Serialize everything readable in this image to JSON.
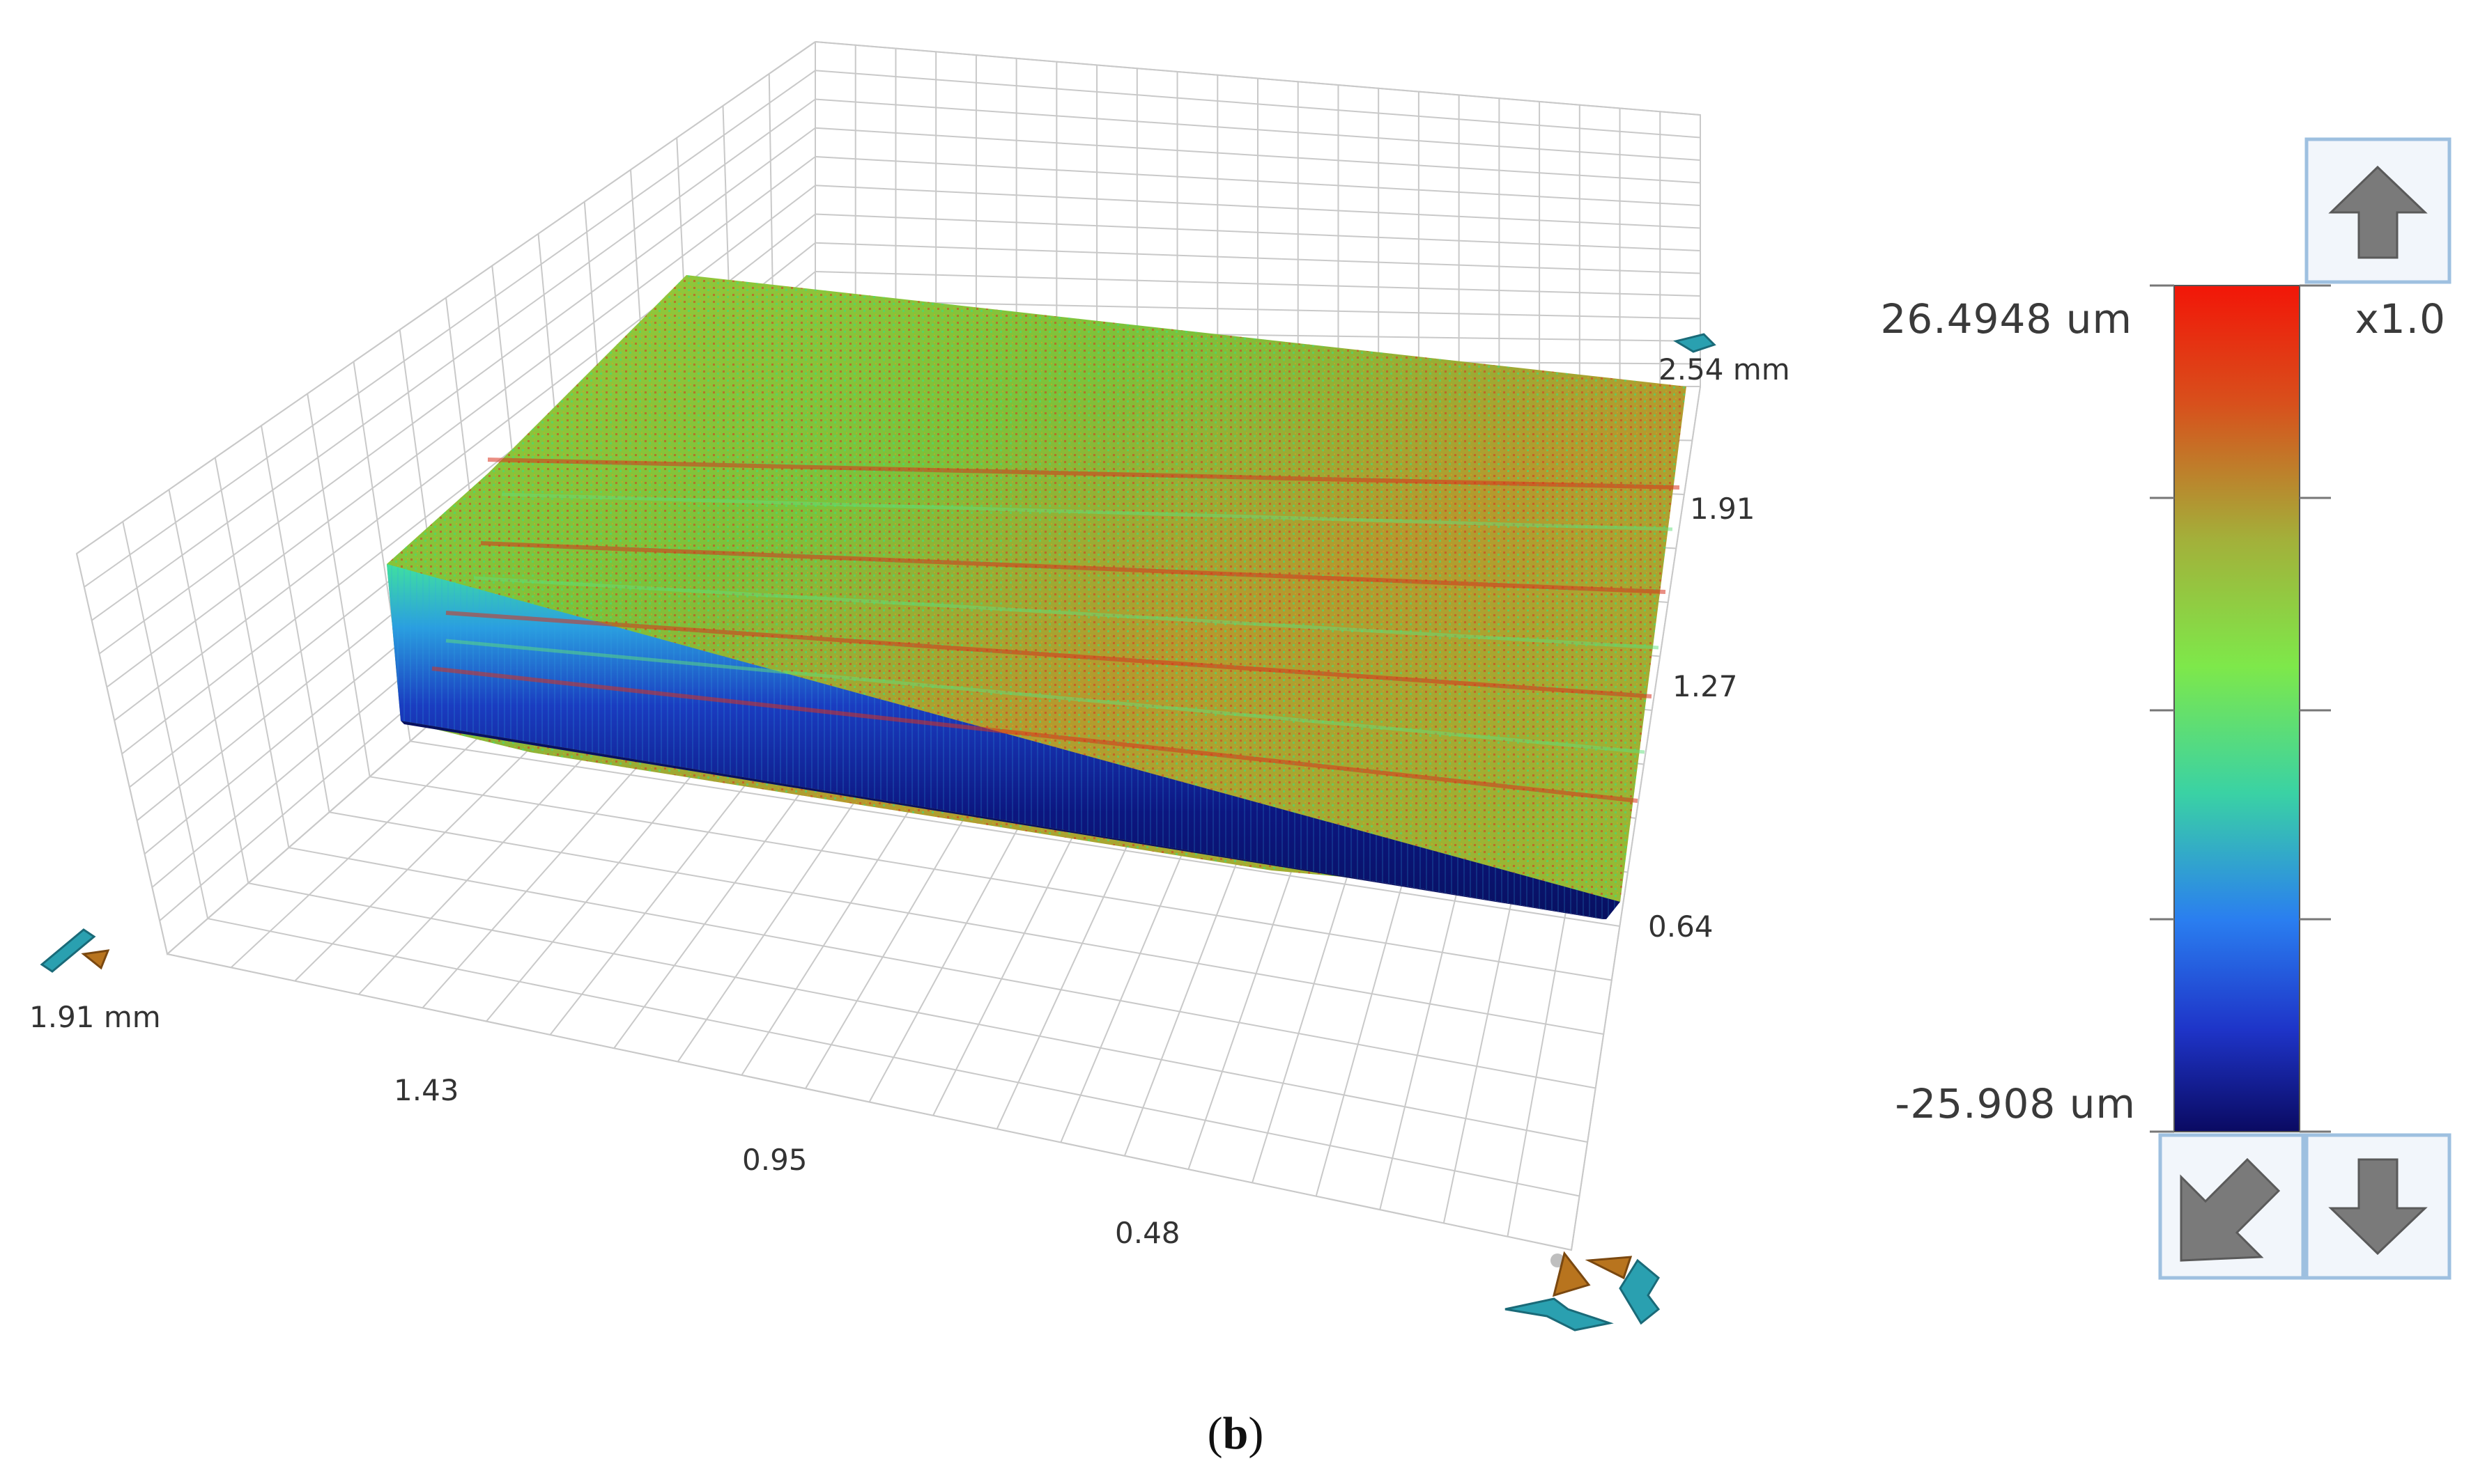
{
  "plot": {
    "axis_labels": {
      "y_axis_ticks": [
        "2.54 mm",
        "1.91",
        "1.27",
        "0.64"
      ],
      "x_axis_ticks": [
        "1.91 mm",
        "1.43",
        "0.95",
        "0.48"
      ]
    },
    "surface_colormap": [
      "#0a1a6e",
      "#1e4fd8",
      "#2fa8e0",
      "#3fe07a",
      "#9ed23a",
      "#c89a2a",
      "#d8321e",
      "#f01a0a"
    ],
    "grid_color": "#c9c9c9"
  },
  "color_scale": {
    "max_label": "26.4948 um",
    "min_label": "-25.908 um",
    "zoom_label": "x1.0",
    "gradient": [
      "#f01a0a",
      "#d85a20",
      "#a6b53a",
      "#7be84a",
      "#36d2a8",
      "#2f7df0",
      "#1e3fd0",
      "#0a0a6a"
    ],
    "buttons": {
      "up": "arrow-up-icon",
      "reset": "arrow-down-left-icon",
      "down": "arrow-down-icon"
    }
  },
  "orientation_gizmos": {
    "left": "rotate-gizmo-icon",
    "right": "rotate-gizmo-icon",
    "top_right": "rotate-gizmo-icon"
  },
  "caption": {
    "open": "(",
    "letter": "b",
    "close": ")"
  }
}
